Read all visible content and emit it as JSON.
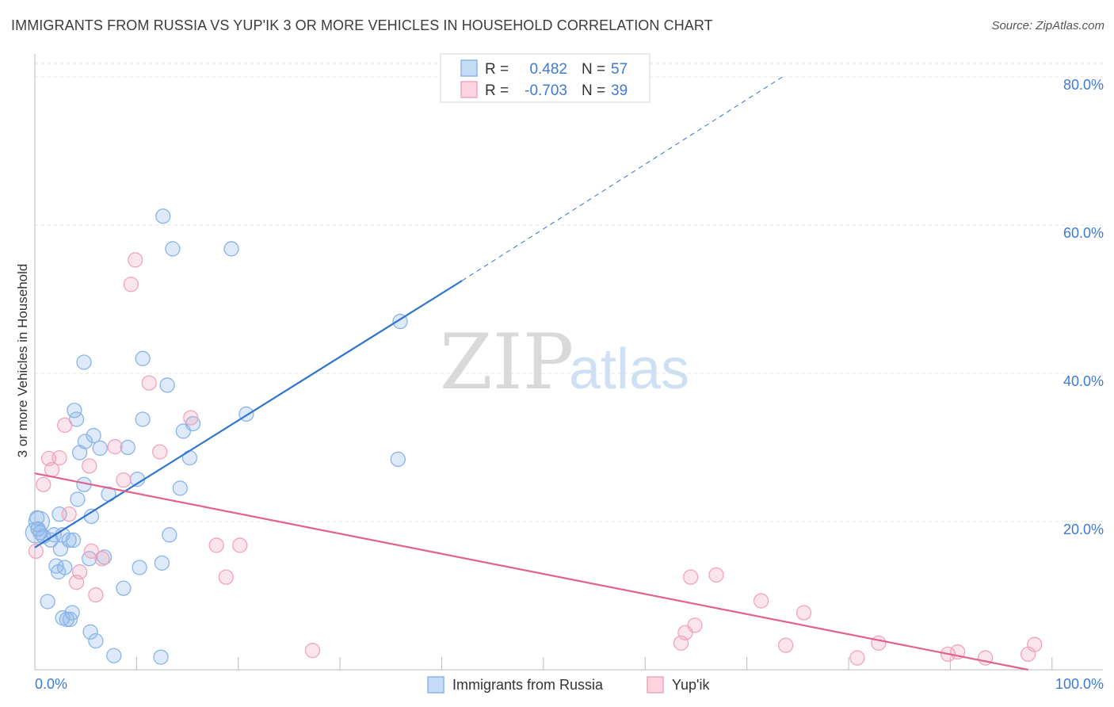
{
  "header": {
    "title": "IMMIGRANTS FROM RUSSIA VS YUP'IK 3 OR MORE VEHICLES IN HOUSEHOLD CORRELATION CHART",
    "source": "Source: ZipAtlas.com"
  },
  "watermark": {
    "zip": "ZIP",
    "atlas": "atlas"
  },
  "chart_data": {
    "type": "scatter",
    "title": "IMMIGRANTS FROM RUSSIA VS YUP'IK 3 OR MORE VEHICLES IN HOUSEHOLD CORRELATION CHART",
    "xlabel": "",
    "ylabel": "3 or more Vehicles in Household",
    "xlim": [
      0,
      100
    ],
    "ylim": [
      0,
      80
    ],
    "x_tick_labels": [
      "0.0%",
      "100.0%"
    ],
    "y_ticks": [
      20,
      40,
      60,
      80
    ],
    "y_tick_labels": [
      "20.0%",
      "40.0%",
      "60.0%",
      "80.0%"
    ],
    "grid": true,
    "legend": {
      "placement": "top-center",
      "r_label": "R =",
      "n_label": "N =",
      "entries": [
        {
          "r": "0.482",
          "n": "57"
        },
        {
          "r": "-0.703",
          "n": "39"
        }
      ]
    },
    "series": [
      {
        "name": "Immigrants from Russia",
        "color": "#8ab4e8",
        "line_color": "#2f74d0",
        "trend": {
          "x0": 0,
          "y0": 16.5,
          "x1": 40,
          "y1": 52.5,
          "dash_to_x": 70,
          "dash_to_y": 80
        },
        "points": [
          [
            0.2,
            20.5
          ],
          [
            0.3,
            19
          ],
          [
            0.5,
            18.5
          ],
          [
            0.8,
            18
          ],
          [
            1.2,
            9.2
          ],
          [
            1.5,
            17.5
          ],
          [
            1.8,
            18.2
          ],
          [
            2,
            14
          ],
          [
            2.2,
            13.2
          ],
          [
            2.3,
            21
          ],
          [
            2.4,
            16.3
          ],
          [
            2.6,
            18.2
          ],
          [
            2.6,
            7
          ],
          [
            2.8,
            13.8
          ],
          [
            3,
            6.8
          ],
          [
            3.2,
            17.5
          ],
          [
            3.3,
            6.8
          ],
          [
            3.5,
            7.7
          ],
          [
            3.6,
            17.5
          ],
          [
            3.7,
            35
          ],
          [
            3.9,
            33.8
          ],
          [
            4,
            23
          ],
          [
            4.2,
            29.3
          ],
          [
            4.6,
            25
          ],
          [
            4.6,
            41.5
          ],
          [
            4.7,
            30.8
          ],
          [
            5.1,
            15
          ],
          [
            5.2,
            5.1
          ],
          [
            5.3,
            20.7
          ],
          [
            5.5,
            31.6
          ],
          [
            5.7,
            3.9
          ],
          [
            6.1,
            29.9
          ],
          [
            6.5,
            15.2
          ],
          [
            6.9,
            23.7
          ],
          [
            7.4,
            1.9
          ],
          [
            8.3,
            11
          ],
          [
            8.7,
            30
          ],
          [
            9.6,
            25.7
          ],
          [
            9.8,
            13.8
          ],
          [
            10.1,
            33.8
          ],
          [
            10.1,
            42
          ],
          [
            11.8,
            1.7
          ],
          [
            11.9,
            14.4
          ],
          [
            12.0,
            61.2
          ],
          [
            12.4,
            38.4
          ],
          [
            12.6,
            18.2
          ],
          [
            12.9,
            56.8
          ],
          [
            13.6,
            24.5
          ],
          [
            13.9,
            32.2
          ],
          [
            14.5,
            28.6
          ],
          [
            14.8,
            33.2
          ],
          [
            18.4,
            56.8
          ],
          [
            19.8,
            34.5
          ],
          [
            34.0,
            28.4
          ],
          [
            34.2,
            47
          ],
          [
            0.1,
            18.5
          ],
          [
            0.4,
            20
          ]
        ]
      },
      {
        "name": "Yup'ik",
        "color": "#f2a3bc",
        "line_color": "#e0628d",
        "trend": {
          "x0": 0,
          "y0": 26.5,
          "x1": 93,
          "y1": 0
        },
        "points": [
          [
            0.1,
            16
          ],
          [
            0.8,
            25
          ],
          [
            1.3,
            28.5
          ],
          [
            1.6,
            27
          ],
          [
            2.3,
            28.6
          ],
          [
            2.8,
            33
          ],
          [
            3.2,
            21
          ],
          [
            3.9,
            11.8
          ],
          [
            4.2,
            13.2
          ],
          [
            5.1,
            27.5
          ],
          [
            5.3,
            16
          ],
          [
            5.7,
            10.1
          ],
          [
            6.3,
            15
          ],
          [
            7.5,
            30.1
          ],
          [
            8.3,
            25.6
          ],
          [
            9.0,
            52
          ],
          [
            9.4,
            55.3
          ],
          [
            10.7,
            38.7
          ],
          [
            11.7,
            29.4
          ],
          [
            14.6,
            34
          ],
          [
            17.0,
            16.8
          ],
          [
            17.9,
            12.5
          ],
          [
            19.2,
            16.8
          ],
          [
            26,
            2.6
          ],
          [
            60.5,
            3.6
          ],
          [
            60.9,
            5
          ],
          [
            61.4,
            12.5
          ],
          [
            61.8,
            6
          ],
          [
            63.8,
            12.8
          ],
          [
            68,
            9.3
          ],
          [
            70.3,
            3.3
          ],
          [
            72,
            7.7
          ],
          [
            77,
            1.6
          ],
          [
            79,
            3.6
          ],
          [
            85.5,
            2.1
          ],
          [
            86.4,
            2.4
          ],
          [
            89,
            1.6
          ],
          [
            93,
            2.1
          ],
          [
            93.6,
            3.4
          ]
        ]
      }
    ]
  },
  "bottom_legend": [
    {
      "label": "Immigrants from Russia",
      "color": "#8ab4e8"
    },
    {
      "label": "Yup'ik",
      "color": "#f2a3bc"
    }
  ]
}
